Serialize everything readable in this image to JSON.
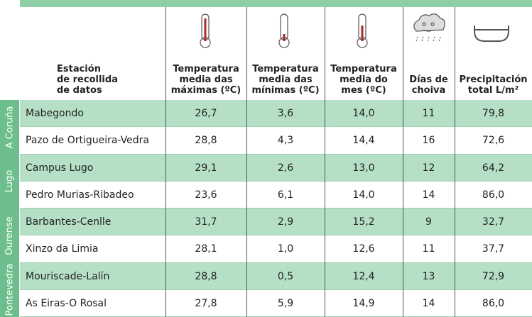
{
  "table": {
    "header": [
      {
        "lines": [
          "Estación",
          "de recollida",
          "de datos"
        ]
      },
      {
        "lines": [
          "Temperatura",
          "media das",
          "máximas (ºC)"
        ]
      },
      {
        "lines": [
          "Temperatura",
          "media das",
          "mínimas (ºC)"
        ]
      },
      {
        "lines": [
          "Temperatura",
          "media do",
          "mes (ºC)"
        ]
      },
      {
        "lines": [
          "Días de",
          "choiva"
        ]
      },
      {
        "lines": [
          "Precipitación",
          "total L/m²"
        ]
      }
    ],
    "groups": [
      {
        "name": "A Coruña",
        "rows": [
          [
            "Mabegondo",
            "26,7",
            "3,6",
            "14,0",
            "11",
            "79,8"
          ],
          [
            "Pazo de Ortigueira-Vedra",
            "28,8",
            "4,3",
            "14,4",
            "16",
            "72,6"
          ]
        ]
      },
      {
        "name": "Lugo",
        "rows": [
          [
            "Campus Lugo",
            "29,1",
            "2,6",
            "13,0",
            "12",
            "64,2"
          ],
          [
            "Pedro Murias-Ribadeo",
            "23,6",
            "6,1",
            "14,0",
            "14",
            "86,0"
          ]
        ]
      },
      {
        "name": "Ourense",
        "rows": [
          [
            "Barbantes-Cenlle",
            "31,7",
            "2,9",
            "15,2",
            "9",
            "32,7"
          ],
          [
            "Xinzo da Limia",
            "28,1",
            "1,0",
            "12,6",
            "11",
            "37,7"
          ]
        ]
      },
      {
        "name": "Pontevedra",
        "rows": [
          [
            "Mouriscade-Lalín",
            "28,8",
            "0,5",
            "12,4",
            "13",
            "72,9"
          ],
          [
            "As Eiras-O Rosal",
            "27,8",
            "5,9",
            "14,9",
            "14",
            "86,0"
          ]
        ]
      }
    ]
  }
}
